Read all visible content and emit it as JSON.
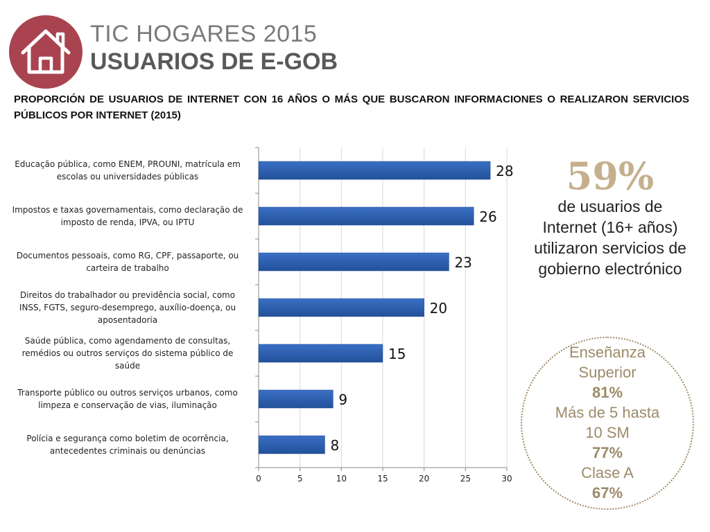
{
  "header": {
    "title_line1": "TIC HOGARES 2015",
    "title_line2": "USUARIOS DE E-GOB",
    "logo_icon": "house-icon",
    "logo_color": "#a9434f"
  },
  "subtitle": "PROPORCIÓN DE USUARIOS DE INTERNET CON 16 AÑOS O MÁS QUE BUSCARON INFORMACIONES O REALIZARON SERVICIOS PÚBLICOS POR INTERNET (2015)",
  "chart_data": {
    "type": "bar",
    "orientation": "horizontal",
    "categories": [
      [
        "Educação pública, como ENEM, PROUNI, matrícula em",
        "escolas ou universidades públicas"
      ],
      [
        "Impostos e taxas governamentais, como declaração de",
        "imposto de renda, IPVA, ou IPTU"
      ],
      [
        "Documentos pessoais, como RG, CPF, passaporte, ou",
        "carteira de trabalho"
      ],
      [
        "Direitos do trabalhador ou previdência social, como",
        "INSS, FGTS, seguro-desemprego, auxílio-doença, ou",
        "aposentadoria"
      ],
      [
        "Saúde pública, como agendamento de consultas,",
        "remédios ou outros serviços do sistema público de",
        "saúde"
      ],
      [
        "Transporte público ou outros serviços urbanos, como",
        "limpeza e conservação de vias, iluminação"
      ],
      [
        "Polícia e segurança como boletim de ocorrência,",
        "antecedentes criminais ou denúncias"
      ]
    ],
    "values": [
      28,
      26,
      23,
      20,
      15,
      9,
      8
    ],
    "xlim": [
      0,
      30
    ],
    "xticks": [
      0,
      5,
      10,
      15,
      20,
      25,
      30
    ],
    "grid": true,
    "bar_color": "#3a6fc4",
    "bar_color_dark": "#23519a",
    "data_labels": true
  },
  "stat": {
    "percent": "59%",
    "description": "de usuarios de Internet (16+ años) utilizaron servicios de gobierno electrónico"
  },
  "circle": {
    "line1": "Enseñanza",
    "line2": "Superior",
    "value1": "81%",
    "line3": "Más de 5 hasta",
    "line4": "10 SM",
    "value2": "77%",
    "line5": "Clase A",
    "value3": "67%"
  }
}
